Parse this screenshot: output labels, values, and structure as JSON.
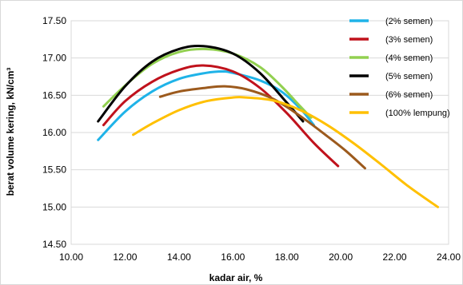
{
  "chart_data": {
    "type": "line",
    "title": "",
    "xlabel": "kadar air, %",
    "ylabel": "berat volume kering, kN/cm³",
    "xlim": [
      10.0,
      24.0
    ],
    "ylim": [
      14.5,
      17.5
    ],
    "x_ticks": [
      "10.00",
      "12.00",
      "14.00",
      "16.00",
      "18.00",
      "20.00",
      "22.00",
      "24.00"
    ],
    "y_ticks": [
      "14.50",
      "15.00",
      "15.50",
      "16.00",
      "16.50",
      "17.00",
      "17.50"
    ],
    "grid": "horizontal",
    "legend_position": "top-right",
    "series": [
      {
        "name": "(2% semen)",
        "color": "#1fb3e8",
        "x": [
          11.0,
          12.0,
          13.0,
          14.0,
          15.0,
          15.6,
          16.0,
          17.0,
          17.8,
          18.5,
          19.0
        ],
        "y": [
          15.9,
          16.28,
          16.55,
          16.72,
          16.8,
          16.82,
          16.8,
          16.7,
          16.55,
          16.32,
          16.1
        ]
      },
      {
        "name": "(3% semen)",
        "color": "#c0121c",
        "x": [
          11.2,
          12.0,
          13.0,
          14.0,
          14.9,
          16.0,
          17.0,
          18.0,
          19.0,
          19.9
        ],
        "y": [
          16.1,
          16.42,
          16.68,
          16.84,
          16.9,
          16.82,
          16.6,
          16.26,
          15.86,
          15.55
        ]
      },
      {
        "name": "(4% semen)",
        "color": "#92d050",
        "x": [
          11.2,
          12.0,
          13.0,
          14.0,
          15.0,
          16.0,
          17.0,
          17.8,
          18.5,
          18.9
        ],
        "y": [
          16.35,
          16.63,
          16.92,
          17.08,
          17.12,
          17.06,
          16.88,
          16.62,
          16.35,
          16.2
        ]
      },
      {
        "name": "(5% semen)",
        "color": "#000000",
        "x": [
          11.0,
          12.0,
          13.0,
          14.0,
          14.9,
          16.0,
          17.0,
          18.0,
          18.6
        ],
        "y": [
          16.15,
          16.62,
          16.95,
          17.12,
          17.16,
          17.06,
          16.8,
          16.4,
          16.15
        ]
      },
      {
        "name": "(6% semen)",
        "color": "#9c5a1d",
        "x": [
          13.3,
          14.0,
          15.0,
          15.7,
          16.5,
          17.5,
          18.5,
          19.5,
          20.2,
          20.9
        ],
        "y": [
          16.48,
          16.55,
          16.6,
          16.62,
          16.58,
          16.45,
          16.22,
          15.95,
          15.75,
          15.52
        ]
      },
      {
        "name": "(100% lempung)",
        "color": "#ffc000",
        "x": [
          12.3,
          13.0,
          14.0,
          15.0,
          16.0,
          16.5,
          17.5,
          18.5,
          19.5,
          20.5,
          21.5,
          22.5,
          23.6
        ],
        "y": [
          15.97,
          16.12,
          16.3,
          16.42,
          16.47,
          16.47,
          16.43,
          16.3,
          16.1,
          15.85,
          15.57,
          15.28,
          15.0
        ]
      }
    ]
  }
}
